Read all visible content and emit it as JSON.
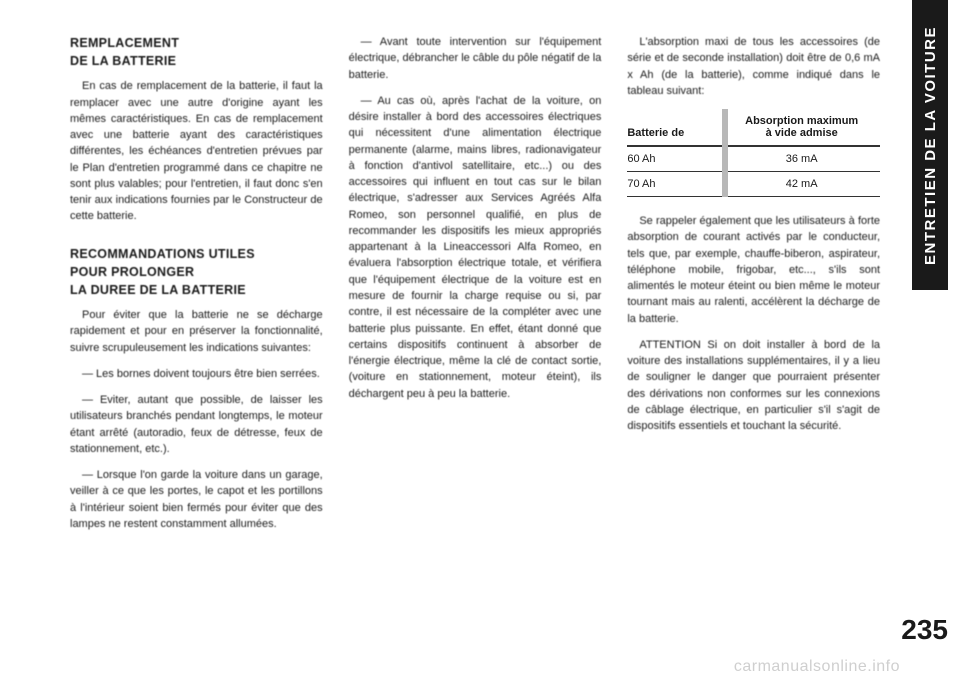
{
  "sidebar": {
    "label": "ENTRETIEN DE LA VOITURE"
  },
  "page_number": "235",
  "watermark": "carmanualsonline.info",
  "col1": {
    "h1": "REMPLACEMENT\nDE LA BATTERIE",
    "p1": "En cas de remplacement de la batterie, il faut la remplacer avec une autre d'origine ayant les mêmes caractéristiques. En cas de remplacement avec une batterie ayant des caractéristiques différentes, les échéances d'entretien prévues par le Plan d'entretien programmé dans ce chapitre ne sont plus valables; pour l'entretien, il faut donc s'en tenir aux indications fournies par le Constructeur de cette batterie.",
    "h2": "RECOMMANDATIONS UTILES\nPOUR PROLONGER\nLA DUREE DE LA BATTERIE",
    "p2": "Pour éviter que la batterie ne se décharge rapidement et pour en préserver la fonctionnalité, suivre scrupuleusement les indications suivantes:",
    "p3": "— Les bornes doivent toujours être bien serrées.",
    "p4": "— Eviter, autant que possible, de laisser les utilisateurs branchés pendant longtemps, le moteur étant arrêté (autoradio, feux de détresse, feux de stationnement, etc.).",
    "p5": "— Lorsque l'on garde la voiture dans un garage, veiller à ce que les portes, le capot et les portillons à l'intérieur soient bien fermés pour éviter que des lampes ne restent constamment allumées."
  },
  "col2": {
    "p1": "— Avant toute intervention sur l'équipement électrique, débrancher le câble du pôle négatif de la batterie.",
    "p2": "— Au cas où, après l'achat de la voiture, on désire installer à bord des accessoires électriques qui nécessitent d'une alimentation électrique permanente (alarme, mains libres, radionavigateur à fonction d'antivol satellitaire, etc...) ou des accessoires qui influent en tout cas sur le bilan électrique, s'adresser aux Services Agréés Alfa Romeo, son personnel qualifié, en plus de recommander les dispositifs les mieux appropriés appartenant à la Lineaccessori Alfa Romeo, en évaluera l'absorption électrique totale, et vérifiera que l'équipement électrique de la voiture est en mesure de fournir la charge requise ou si, par contre, il est nécessaire de la compléter avec une batterie plus puissante. En effet, étant donné que certains dispositifs continuent à absorber de l'énergie électrique, même la clé de contact sortie, (voiture en stationnement, moteur éteint), ils déchargent peu à peu la batterie."
  },
  "col3": {
    "p1": "L'absorption maxi de tous les accessoires (de série et de seconde installation) doit être de 0,6 mA x Ah (de la batterie), comme indiqué dans le tableau suivant:",
    "table": {
      "header": [
        "Batterie de",
        "Absorption maximum\nà vide admise"
      ],
      "rows": [
        [
          "60 Ah",
          "36 mA"
        ],
        [
          "70 Ah",
          "42 mA"
        ]
      ]
    },
    "p2": "Se rappeler également que les utilisateurs à forte absorption de courant activés par le conducteur, tels que, par exemple, chauffe-biberon, aspirateur, téléphone mobile, frigobar, etc..., s'ils sont alimentés le moteur éteint ou bien même le moteur tournant mais au ralenti, accélèrent la décharge de la batterie.",
    "p3": "ATTENTION Si on doit installer à bord de la voiture des installations supplémentaires, il y a lieu de souligner le danger que pourraient présenter des dérivations non conformes sur les connexions de câblage électrique, en particulier s'il s'agit de dispositifs essentiels et touchant la sécurité."
  },
  "colors": {
    "text": "#1a1a1a",
    "bg": "#ffffff",
    "tab_bg": "#1a1a1a",
    "tab_text": "#ffffff",
    "watermark": "#cfcfcf",
    "table_sep": "#b8b8b8"
  }
}
